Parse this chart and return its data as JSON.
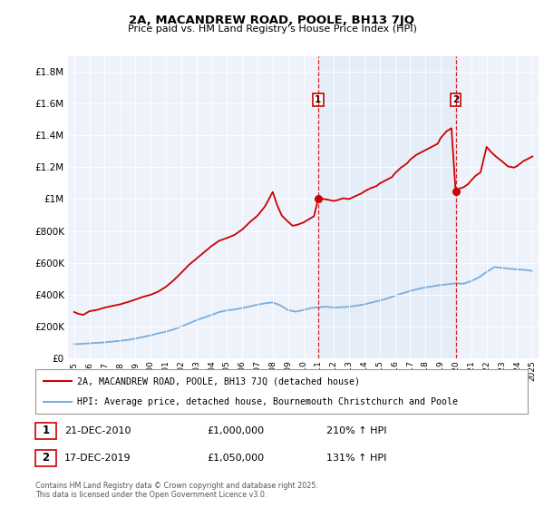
{
  "title1": "2A, MACANDREW ROAD, POOLE, BH13 7JQ",
  "title2": "Price paid vs. HM Land Registry's House Price Index (HPI)",
  "legend_line1": "2A, MACANDREW ROAD, POOLE, BH13 7JQ (detached house)",
  "legend_line2": "HPI: Average price, detached house, Bournemouth Christchurch and Poole",
  "footnote": "Contains HM Land Registry data © Crown copyright and database right 2025.\nThis data is licensed under the Open Government Licence v3.0.",
  "sale1_date": "21-DEC-2010",
  "sale1_price": "£1,000,000",
  "sale1_hpi": "210% ↑ HPI",
  "sale1_year": 2010.97,
  "sale2_date": "17-DEC-2019",
  "sale2_price": "£1,050,000",
  "sale2_hpi": "131% ↑ HPI",
  "sale2_year": 2019.97,
  "sale1_price_val": 1000000,
  "sale2_price_val": 1050000,
  "property_color": "#cc0000",
  "hpi_color": "#7aaddb",
  "background_color": "#eef2fb",
  "vline_color": "#cc0000",
  "ylim_max": 1900000,
  "xlim_start": 1994.6,
  "xlim_end": 2025.4,
  "yticks": [
    0,
    200000,
    400000,
    600000,
    800000,
    1000000,
    1200000,
    1400000,
    1600000,
    1800000
  ],
  "xtick_years": [
    1995,
    1996,
    1997,
    1998,
    1999,
    2000,
    2001,
    2002,
    2003,
    2004,
    2005,
    2006,
    2007,
    2008,
    2009,
    2010,
    2011,
    2012,
    2013,
    2014,
    2015,
    2016,
    2017,
    2018,
    2019,
    2020,
    2021,
    2022,
    2023,
    2024,
    2025
  ],
  "property_data": [
    [
      1995.0,
      290000
    ],
    [
      1995.3,
      278000
    ],
    [
      1995.6,
      272000
    ],
    [
      1996.0,
      295000
    ],
    [
      1996.5,
      303000
    ],
    [
      1997.0,
      318000
    ],
    [
      1997.5,
      328000
    ],
    [
      1998.0,
      338000
    ],
    [
      1998.5,
      352000
    ],
    [
      1999.0,
      368000
    ],
    [
      1999.5,
      385000
    ],
    [
      2000.0,
      398000
    ],
    [
      2000.5,
      418000
    ],
    [
      2001.0,
      448000
    ],
    [
      2001.5,
      488000
    ],
    [
      2002.0,
      535000
    ],
    [
      2002.5,
      585000
    ],
    [
      2003.0,
      625000
    ],
    [
      2003.5,
      665000
    ],
    [
      2004.0,
      705000
    ],
    [
      2004.5,
      738000
    ],
    [
      2005.0,
      755000
    ],
    [
      2005.5,
      775000
    ],
    [
      2006.0,
      808000
    ],
    [
      2006.5,
      855000
    ],
    [
      2007.0,
      895000
    ],
    [
      2007.5,
      955000
    ],
    [
      2008.0,
      1045000
    ],
    [
      2008.3,
      960000
    ],
    [
      2008.6,
      895000
    ],
    [
      2009.0,
      858000
    ],
    [
      2009.3,
      832000
    ],
    [
      2009.6,
      838000
    ],
    [
      2010.0,
      852000
    ],
    [
      2010.4,
      875000
    ],
    [
      2010.7,
      892000
    ],
    [
      2010.97,
      1000000
    ],
    [
      2011.2,
      1002000
    ],
    [
      2011.5,
      998000
    ],
    [
      2011.8,
      992000
    ],
    [
      2012.0,
      988000
    ],
    [
      2012.3,
      995000
    ],
    [
      2012.6,
      1005000
    ],
    [
      2013.0,
      1000000
    ],
    [
      2013.4,
      1018000
    ],
    [
      2013.8,
      1035000
    ],
    [
      2014.0,
      1048000
    ],
    [
      2014.4,
      1068000
    ],
    [
      2014.8,
      1082000
    ],
    [
      2015.0,
      1098000
    ],
    [
      2015.4,
      1118000
    ],
    [
      2015.8,
      1138000
    ],
    [
      2016.0,
      1162000
    ],
    [
      2016.4,
      1198000
    ],
    [
      2016.8,
      1225000
    ],
    [
      2017.0,
      1248000
    ],
    [
      2017.4,
      1278000
    ],
    [
      2017.8,
      1298000
    ],
    [
      2018.0,
      1308000
    ],
    [
      2018.4,
      1328000
    ],
    [
      2018.8,
      1348000
    ],
    [
      2019.0,
      1385000
    ],
    [
      2019.4,
      1428000
    ],
    [
      2019.7,
      1445000
    ],
    [
      2019.97,
      1050000
    ],
    [
      2020.2,
      1065000
    ],
    [
      2020.5,
      1075000
    ],
    [
      2020.8,
      1095000
    ],
    [
      2021.0,
      1118000
    ],
    [
      2021.3,
      1148000
    ],
    [
      2021.6,
      1168000
    ],
    [
      2022.0,
      1328000
    ],
    [
      2022.3,
      1295000
    ],
    [
      2022.6,
      1268000
    ],
    [
      2023.0,
      1238000
    ],
    [
      2023.4,
      1205000
    ],
    [
      2023.8,
      1198000
    ],
    [
      2024.0,
      1208000
    ],
    [
      2024.4,
      1238000
    ],
    [
      2024.8,
      1258000
    ],
    [
      2025.0,
      1268000
    ]
  ],
  "hpi_data": [
    [
      1995.0,
      88000
    ],
    [
      1995.5,
      90000
    ],
    [
      1996.0,
      93000
    ],
    [
      1996.5,
      96000
    ],
    [
      1997.0,
      99000
    ],
    [
      1997.5,
      104000
    ],
    [
      1998.0,
      109000
    ],
    [
      1998.5,
      114000
    ],
    [
      1999.0,
      123000
    ],
    [
      1999.5,
      133000
    ],
    [
      2000.0,
      143000
    ],
    [
      2000.5,
      156000
    ],
    [
      2001.0,
      166000
    ],
    [
      2001.5,
      180000
    ],
    [
      2002.0,
      198000
    ],
    [
      2002.5,
      218000
    ],
    [
      2003.0,
      238000
    ],
    [
      2003.5,
      255000
    ],
    [
      2004.0,
      272000
    ],
    [
      2004.5,
      290000
    ],
    [
      2005.0,
      300000
    ],
    [
      2005.5,
      306000
    ],
    [
      2006.0,
      315000
    ],
    [
      2006.5,
      325000
    ],
    [
      2007.0,
      336000
    ],
    [
      2007.5,
      345000
    ],
    [
      2008.0,
      350000
    ],
    [
      2008.5,
      332000
    ],
    [
      2009.0,
      302000
    ],
    [
      2009.5,
      292000
    ],
    [
      2010.0,
      302000
    ],
    [
      2010.5,
      315000
    ],
    [
      2010.97,
      320000
    ],
    [
      2011.5,
      323000
    ],
    [
      2012.0,
      318000
    ],
    [
      2012.5,
      320000
    ],
    [
      2013.0,
      323000
    ],
    [
      2013.5,
      330000
    ],
    [
      2014.0,
      338000
    ],
    [
      2014.5,
      350000
    ],
    [
      2015.0,
      362000
    ],
    [
      2015.5,
      375000
    ],
    [
      2016.0,
      392000
    ],
    [
      2016.5,
      408000
    ],
    [
      2017.0,
      422000
    ],
    [
      2017.5,
      435000
    ],
    [
      2018.0,
      445000
    ],
    [
      2018.5,
      452000
    ],
    [
      2019.0,
      460000
    ],
    [
      2019.5,
      465000
    ],
    [
      2019.97,
      470000
    ],
    [
      2020.5,
      468000
    ],
    [
      2021.0,
      485000
    ],
    [
      2021.5,
      508000
    ],
    [
      2022.0,
      542000
    ],
    [
      2022.5,
      572000
    ],
    [
      2023.0,
      568000
    ],
    [
      2023.5,
      562000
    ],
    [
      2024.0,
      558000
    ],
    [
      2024.5,
      555000
    ],
    [
      2025.0,
      548000
    ]
  ]
}
